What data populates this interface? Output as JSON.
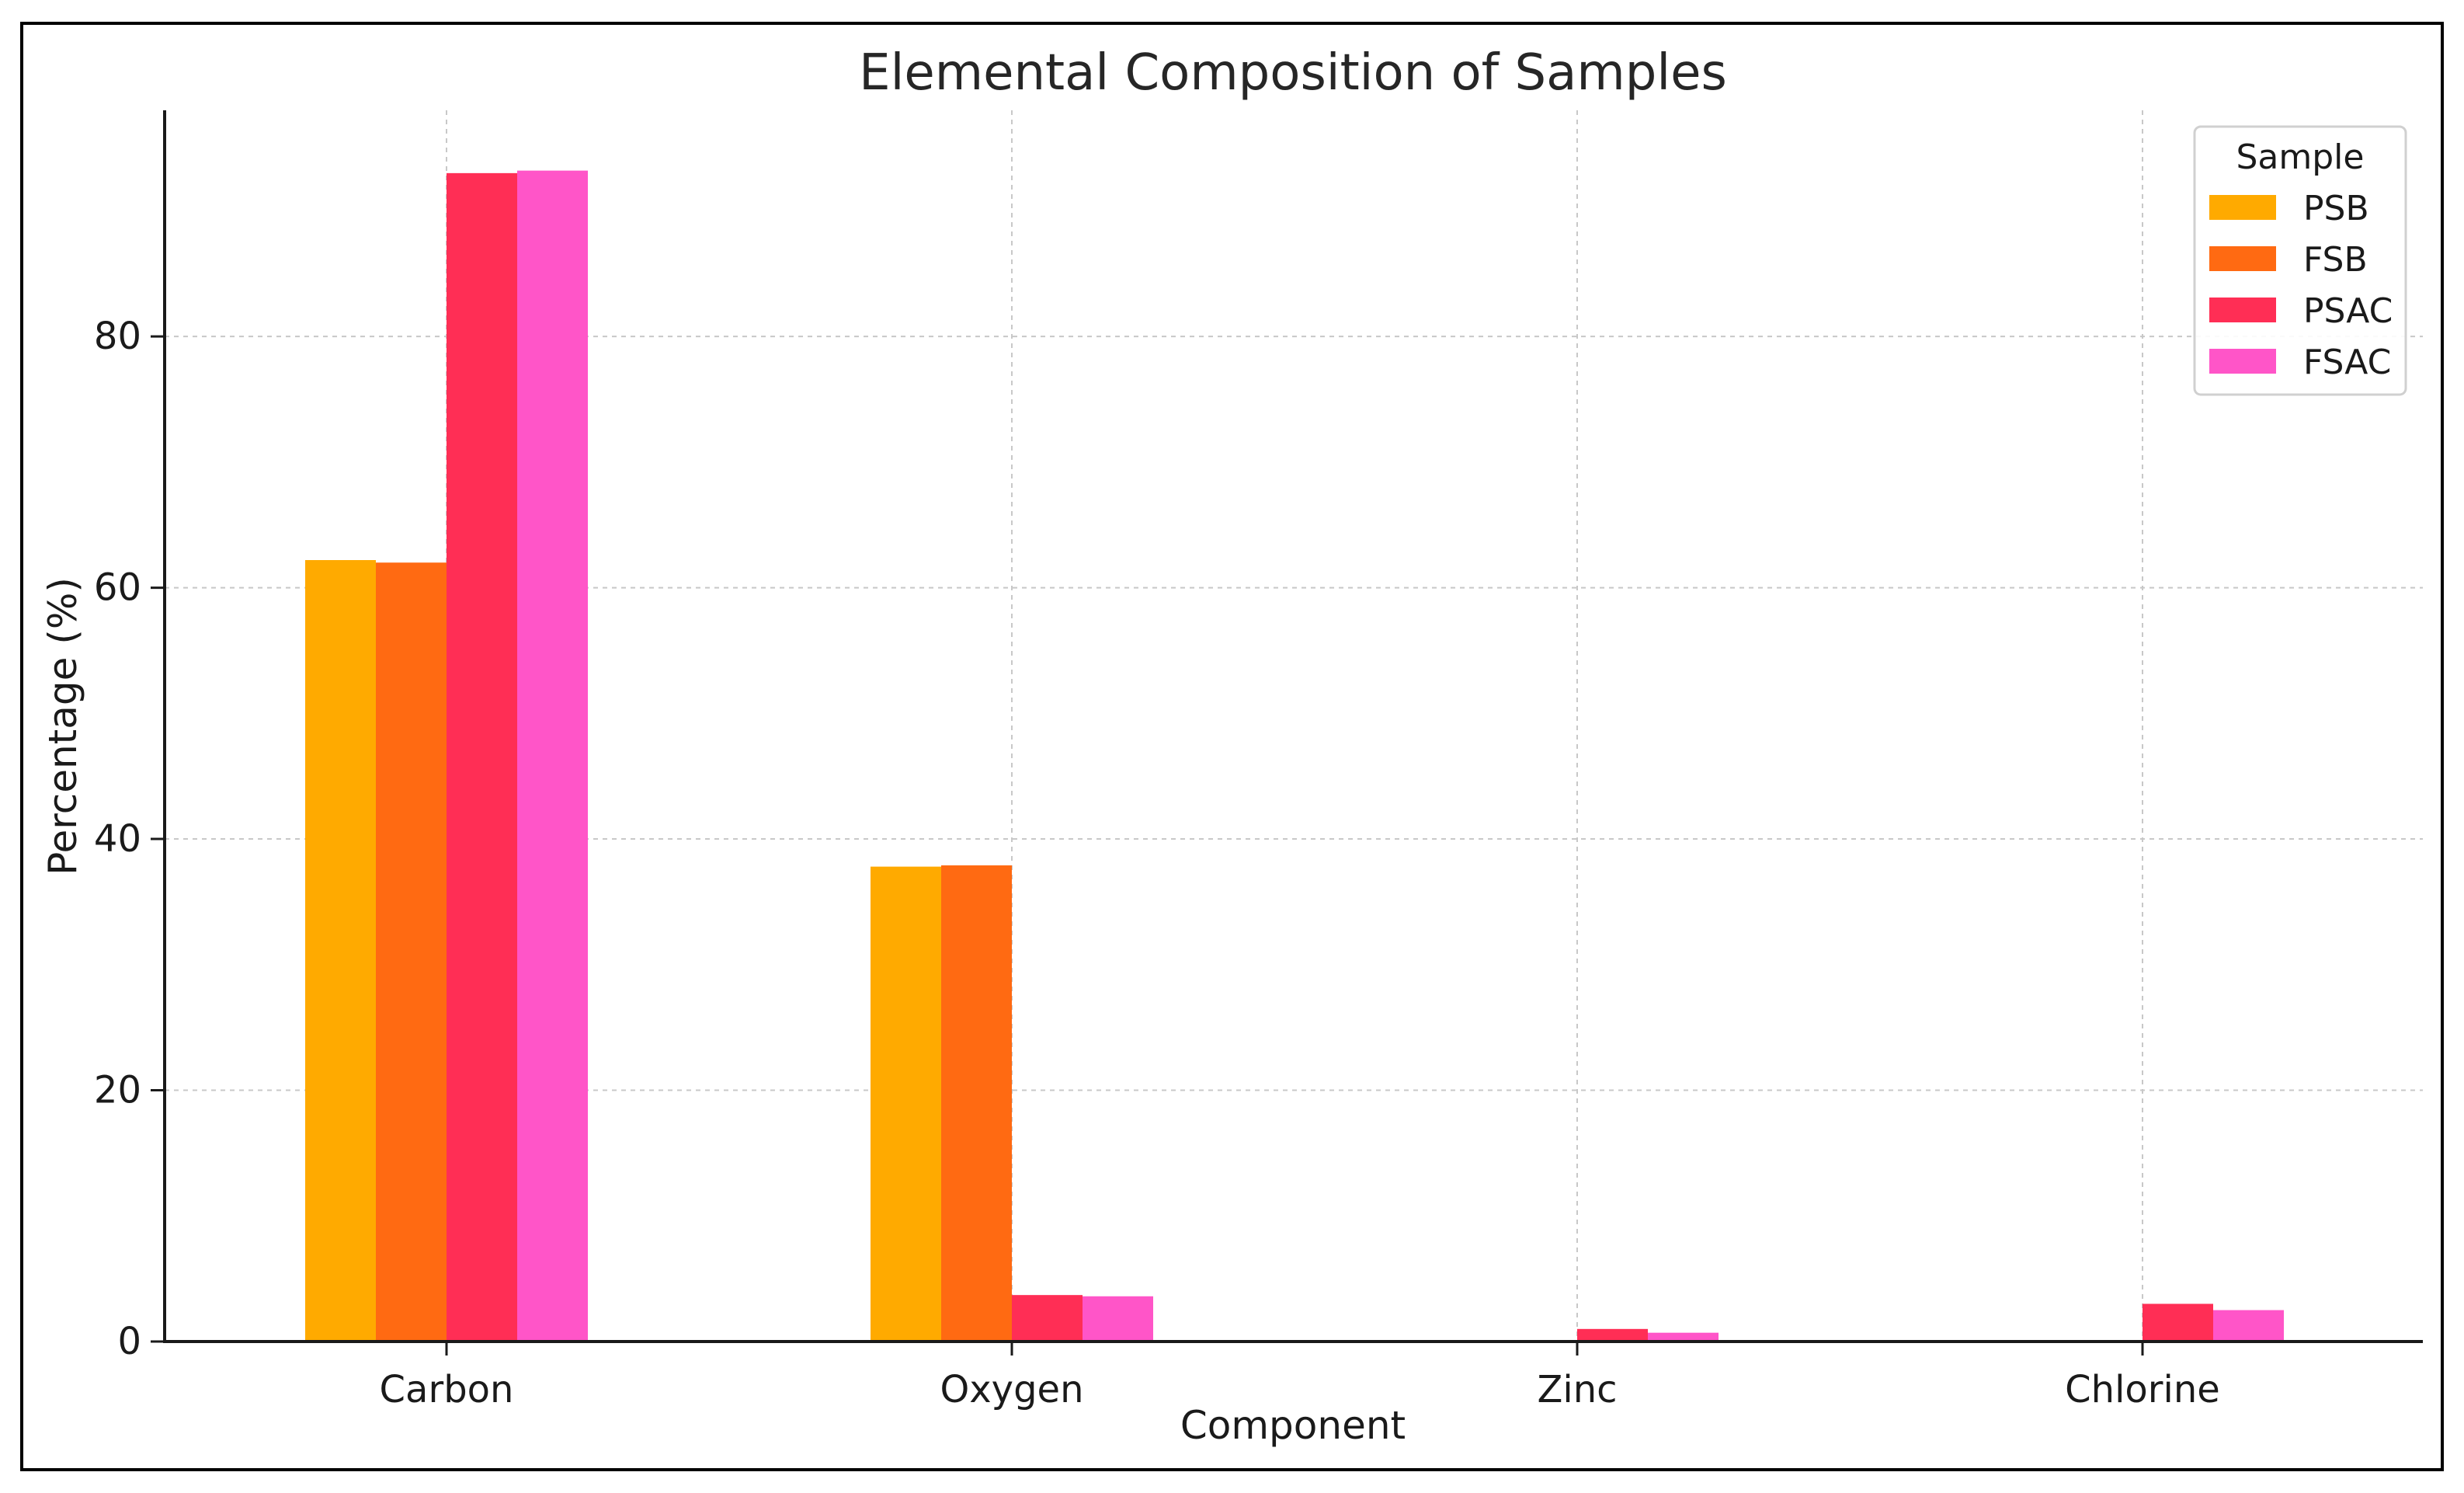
{
  "chart_data": {
    "type": "bar",
    "title": "Elemental Composition of Samples",
    "xlabel": "Component",
    "ylabel": "Percentage (%)",
    "categories": [
      "Carbon",
      "Oxygen",
      "Zinc",
      "Chlorine"
    ],
    "series": [
      {
        "name": "PSB",
        "color": "#FFAA00",
        "values": [
          62.2,
          37.8,
          0,
          0
        ]
      },
      {
        "name": "FSB",
        "color": "#FF6A12",
        "values": [
          62.0,
          37.9,
          0,
          0
        ]
      },
      {
        "name": "PSAC",
        "color": "#FF2E55",
        "values": [
          93.0,
          3.7,
          1.0,
          3.0
        ]
      },
      {
        "name": "FSAC",
        "color": "#FF55C8",
        "values": [
          93.2,
          3.6,
          0.7,
          2.5
        ]
      }
    ],
    "ylim": [
      0,
      98
    ],
    "yticks": [
      0,
      20,
      40,
      60,
      80
    ],
    "grid": true,
    "legend": {
      "title": "Sample",
      "position": "top-right"
    }
  }
}
